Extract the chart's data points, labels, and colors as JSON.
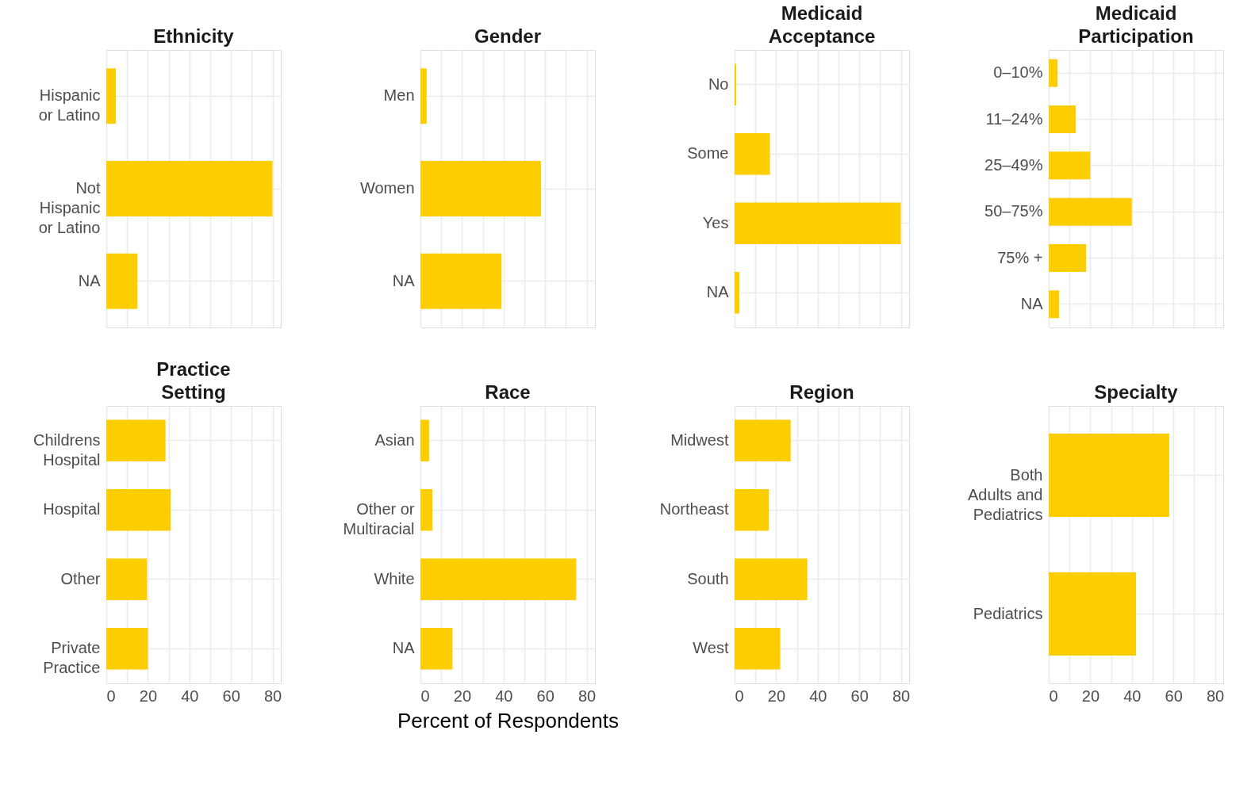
{
  "chart_data": [
    {
      "type": "bar",
      "orientation": "horizontal",
      "title": "Ethnicity",
      "categories": [
        "Hispanic\nor Latino",
        "Not\nHispanic\nor Latino",
        "NA"
      ],
      "values": [
        4.6,
        80,
        15
      ],
      "color": "#fcce00",
      "xlim": [
        0,
        84
      ],
      "xticks": [
        0,
        {
          "value": 10,
          "label": null
        },
        20,
        {
          "value": 30,
          "label": null
        },
        40,
        {
          "value": 50,
          "label": null
        },
        60,
        {
          "value": 70,
          "label": null
        },
        80
      ],
      "grid": true,
      "tick_labels": "y"
    },
    {
      "type": "bar",
      "orientation": "horizontal",
      "title": "Gender",
      "categories": [
        "Men",
        "Women",
        "NA"
      ],
      "values": [
        3,
        58,
        39
      ],
      "color": "#fcce00",
      "xlim": [
        0,
        84
      ],
      "xticks": [
        0,
        {
          "value": 10,
          "label": null
        },
        20,
        {
          "value": 30,
          "label": null
        },
        40,
        {
          "value": 50,
          "label": null
        },
        60,
        {
          "value": 70,
          "label": null
        },
        80
      ],
      "grid": true,
      "tick_labels": "y"
    },
    {
      "type": "bar",
      "orientation": "horizontal",
      "title": "Medicaid\nAcceptance",
      "categories": [
        "No",
        "Some",
        "Yes",
        "NA"
      ],
      "values": [
        0.8,
        17,
        80,
        2.3
      ],
      "color": "#fcce00",
      "xlim": [
        0,
        84
      ],
      "xticks": [
        0,
        {
          "value": 10,
          "label": null
        },
        20,
        {
          "value": 30,
          "label": null
        },
        40,
        {
          "value": 50,
          "label": null
        },
        60,
        {
          "value": 70,
          "label": null
        },
        80
      ],
      "grid": true,
      "tick_labels": "y"
    },
    {
      "type": "bar",
      "orientation": "horizontal",
      "title": "Medicaid\nParticipation",
      "categories": [
        "0–10%",
        "11–24%",
        "25–49%",
        "50–75%",
        "75% +",
        "NA"
      ],
      "values": [
        4.2,
        13,
        20,
        40,
        18,
        5
      ],
      "color": "#fcce00",
      "xlim": [
        0,
        84
      ],
      "xticks": [
        0,
        {
          "value": 10,
          "label": null
        },
        20,
        {
          "value": 30,
          "label": null
        },
        40,
        {
          "value": 50,
          "label": null
        },
        60,
        {
          "value": 70,
          "label": null
        },
        80
      ],
      "grid": true,
      "tick_labels": "y"
    },
    {
      "type": "bar",
      "orientation": "horizontal",
      "title": "Practice\nSetting",
      "categories": [
        "Childrens\nHospital",
        "Hospital",
        "Other",
        "Private\nPractice"
      ],
      "values": [
        28.5,
        31,
        19.6,
        20
      ],
      "color": "#fcce00",
      "xlim": [
        0,
        84
      ],
      "xticks": [
        0,
        {
          "value": 10,
          "label": null
        },
        20,
        {
          "value": 30,
          "label": null
        },
        40,
        {
          "value": 50,
          "label": null
        },
        60,
        {
          "value": 70,
          "label": null
        },
        80
      ],
      "grid": true
    },
    {
      "type": "bar",
      "orientation": "horizontal",
      "title": "Race",
      "xlabel": "Percent of Respondents",
      "categories": [
        "Asian",
        "Other or\nMultiracial",
        "White",
        "NA"
      ],
      "values": [
        4.2,
        5.8,
        75,
        15.4
      ],
      "color": "#fcce00",
      "xlim": [
        0,
        84
      ],
      "xticks": [
        0,
        {
          "value": 10,
          "label": null
        },
        20,
        {
          "value": 30,
          "label": null
        },
        40,
        {
          "value": 50,
          "label": null
        },
        60,
        {
          "value": 70,
          "label": null
        },
        80
      ],
      "grid": true
    },
    {
      "type": "bar",
      "orientation": "horizontal",
      "title": "Region",
      "categories": [
        "Midwest",
        "Northeast",
        "South",
        "West"
      ],
      "values": [
        27,
        16.5,
        35,
        22
      ],
      "color": "#fcce00",
      "xlim": [
        0,
        84
      ],
      "xticks": [
        0,
        {
          "value": 10,
          "label": null
        },
        20,
        {
          "value": 30,
          "label": null
        },
        40,
        {
          "value": 50,
          "label": null
        },
        60,
        {
          "value": 70,
          "label": null
        },
        80
      ],
      "grid": true
    },
    {
      "type": "bar",
      "orientation": "horizontal",
      "title": "Specialty",
      "categories": [
        "Both\nAdults and\nPediatrics",
        "Pediatrics"
      ],
      "values": [
        58,
        42
      ],
      "color": "#fcce00",
      "xlim": [
        0,
        84
      ],
      "xticks": [
        0,
        {
          "value": 10,
          "label": null
        },
        20,
        {
          "value": 30,
          "label": null
        },
        40,
        {
          "value": 50,
          "label": null
        },
        60,
        {
          "value": 70,
          "label": null
        },
        80
      ],
      "grid": true
    }
  ]
}
